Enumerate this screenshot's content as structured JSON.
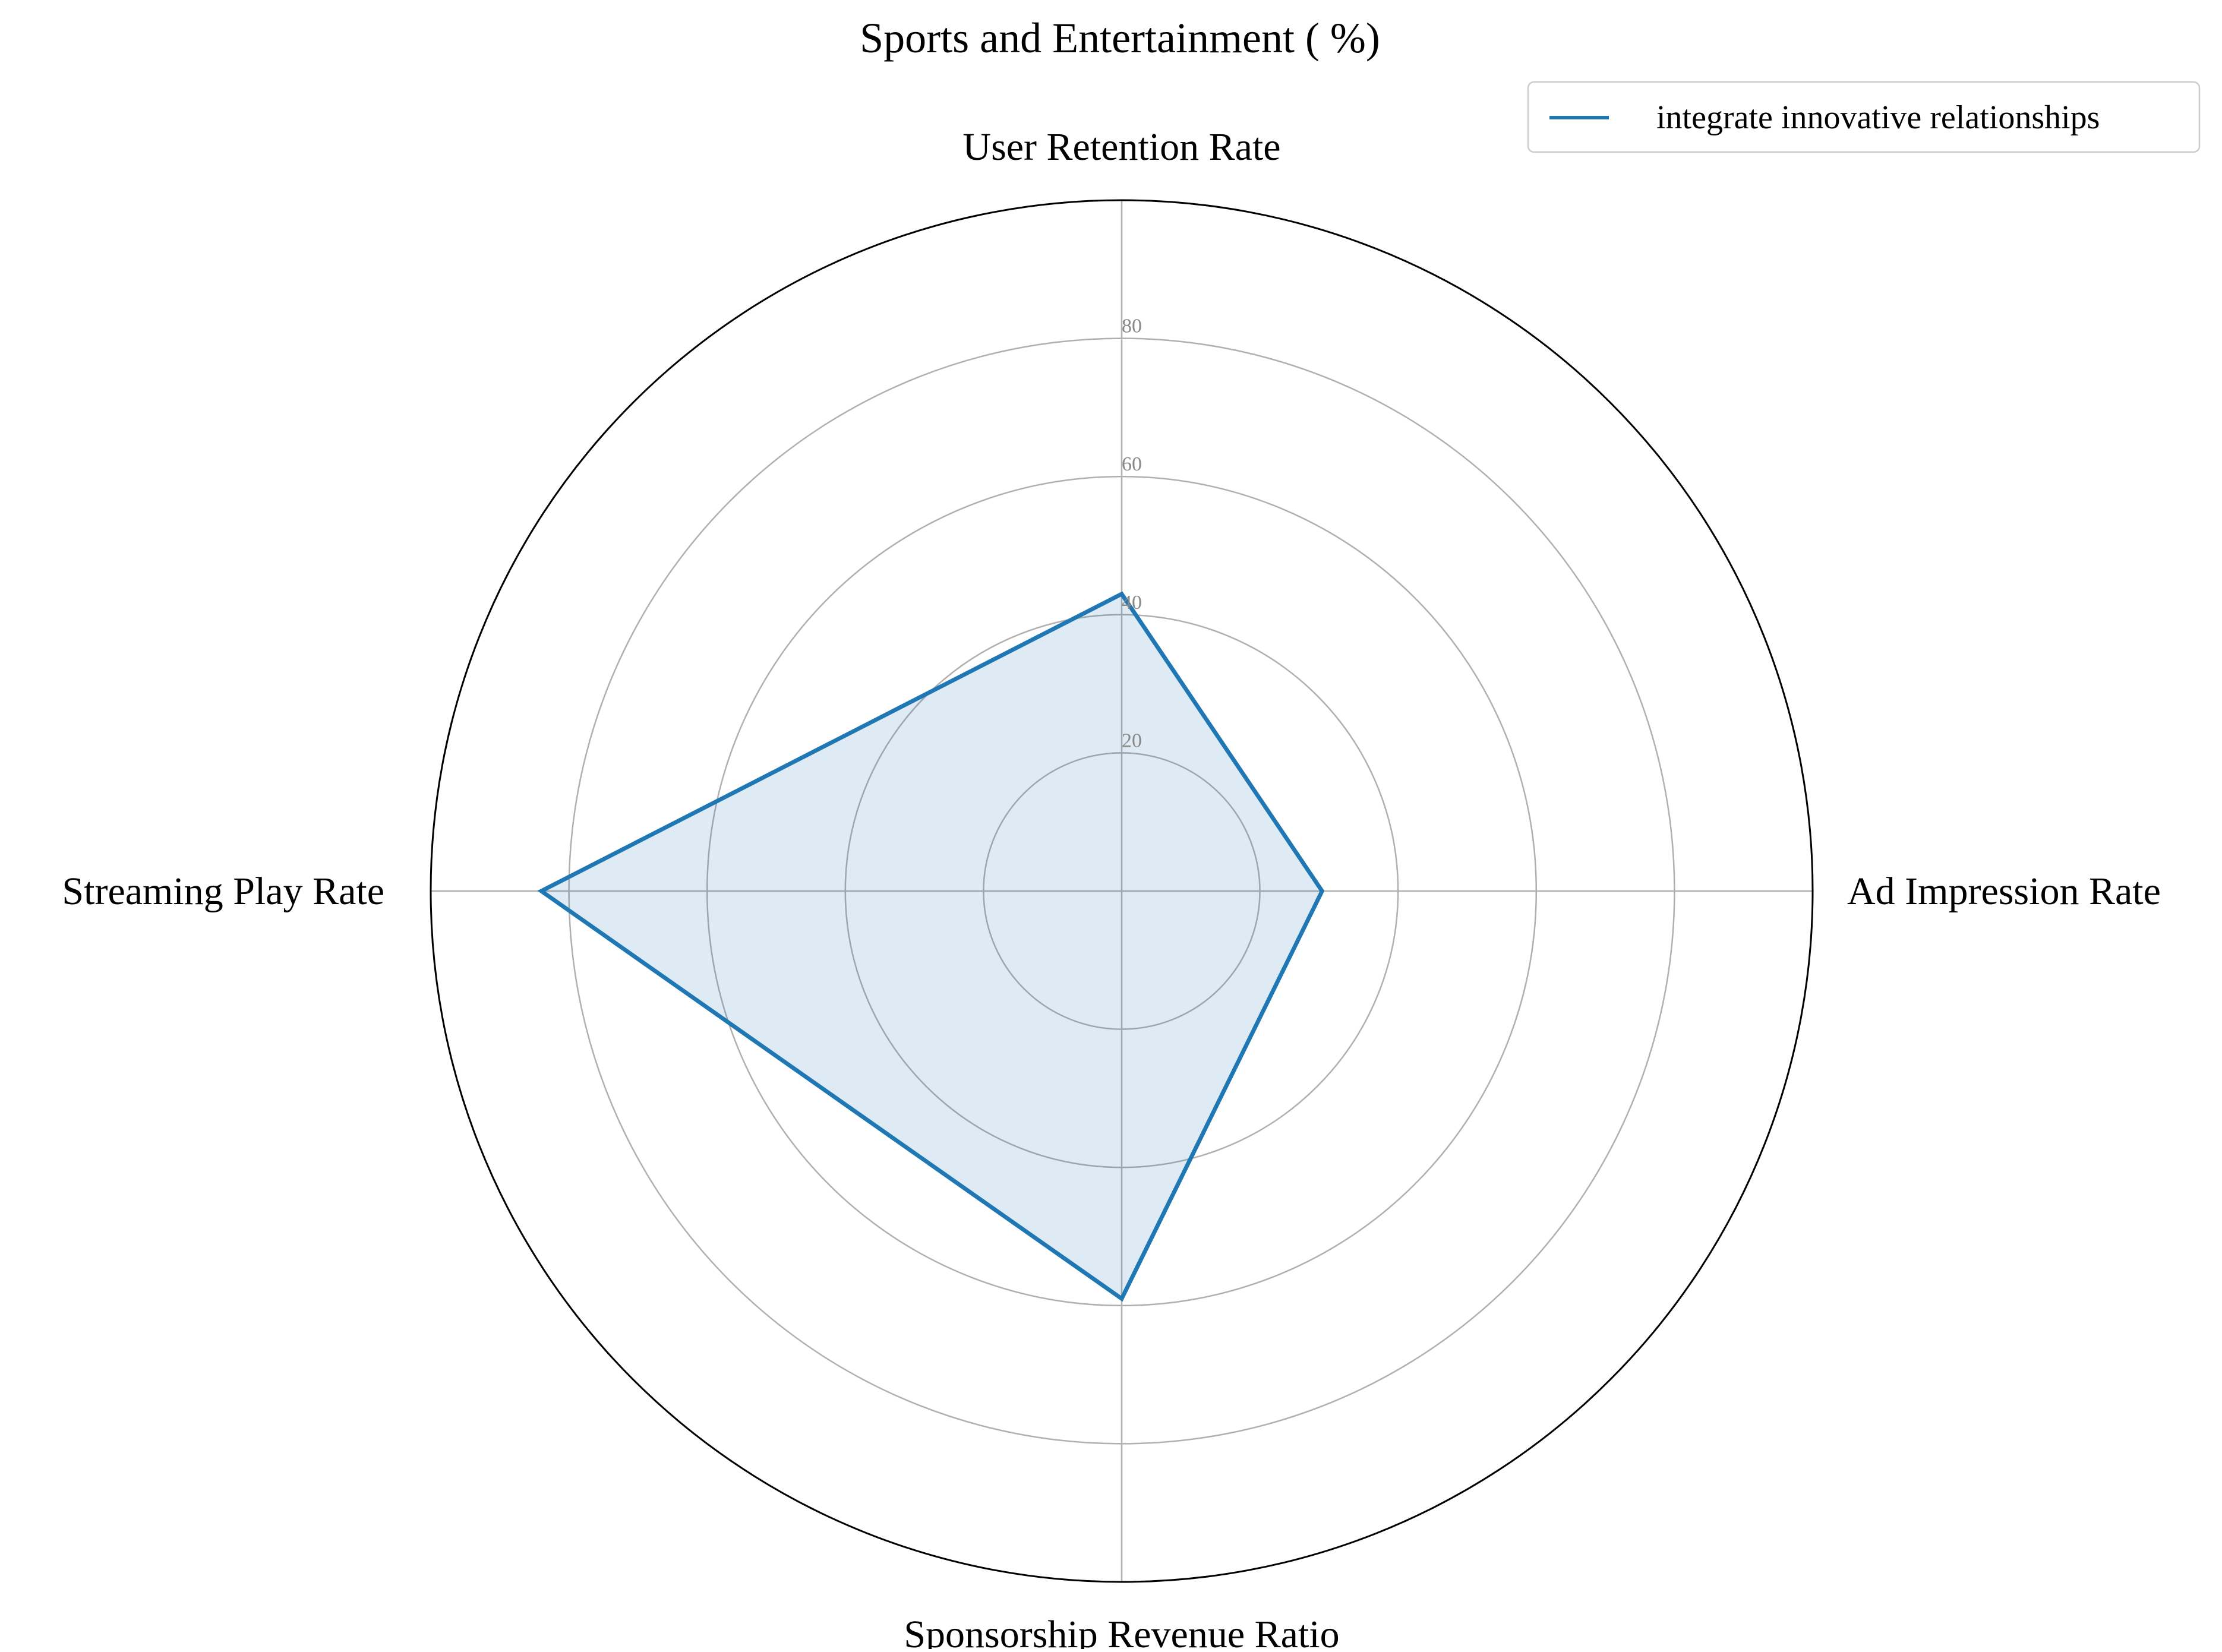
{
  "chart_data": {
    "type": "radar",
    "title": "Sports and Entertainment ( %)",
    "axes": [
      "User Retention Rate",
      "Ad Impression Rate",
      "Sponsorship Revenue Ratio",
      "Streaming Play Rate"
    ],
    "series": [
      {
        "name": "integrate innovative relationships",
        "values": [
          43,
          29,
          59,
          84
        ]
      }
    ],
    "rlim": [
      0,
      100
    ],
    "rticks": [
      20,
      40,
      60,
      80
    ],
    "grid": true,
    "legend_position": "top-right",
    "colors": {
      "series_line": "#1f77b4",
      "series_fill": "#1f77b4",
      "grid": "#b0b0b0",
      "frame": "#000000",
      "tick_text": "#888888"
    }
  }
}
